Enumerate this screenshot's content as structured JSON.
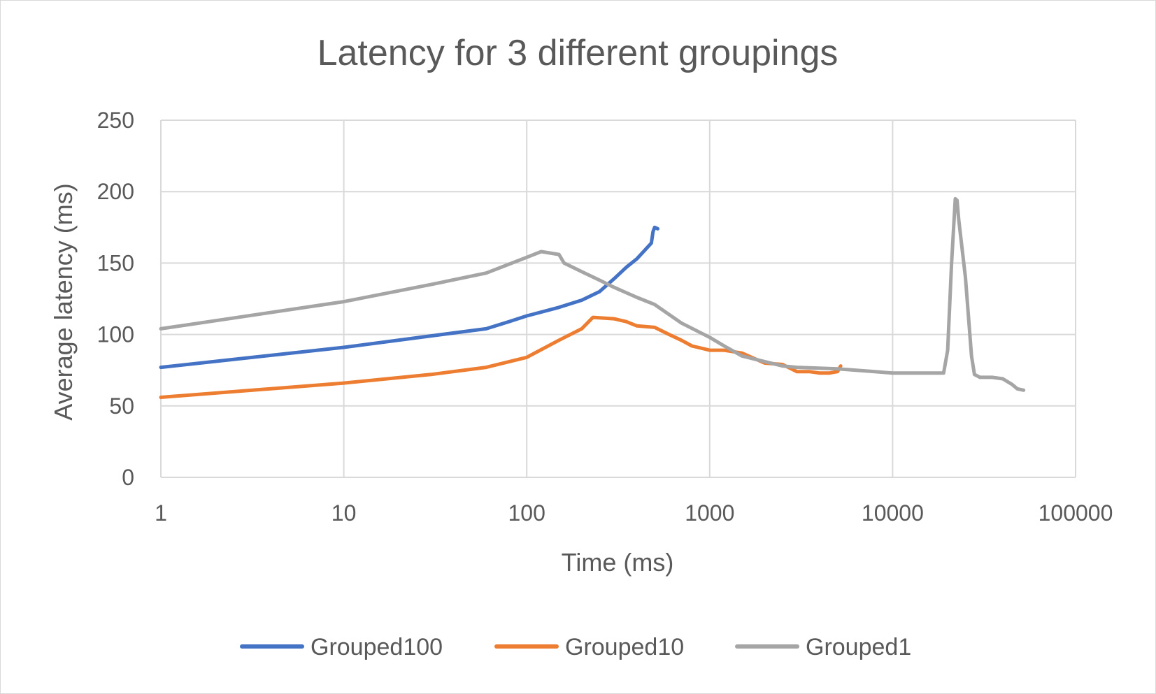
{
  "chart_data": {
    "type": "line",
    "title": "Latency for 3 different groupings",
    "xlabel": "Time (ms)",
    "ylabel": "Average latency (ms)",
    "x_scale": "log",
    "xlim": [
      1,
      100000
    ],
    "ylim": [
      0,
      250
    ],
    "x_ticks": [
      "1",
      "10",
      "100",
      "1000",
      "10000",
      "100000"
    ],
    "x_tick_values": [
      1,
      10,
      100,
      1000,
      10000,
      100000
    ],
    "y_ticks": [
      "0",
      "50",
      "100",
      "150",
      "200",
      "250"
    ],
    "y_tick_values": [
      0,
      50,
      100,
      150,
      200,
      250
    ],
    "grid": true,
    "legend_position": "bottom",
    "series": [
      {
        "name": "Grouped100",
        "color": "#4472c4",
        "x": [
          1,
          10,
          30,
          60,
          80,
          100,
          150,
          200,
          250,
          300,
          350,
          400,
          480,
          490,
          500,
          520
        ],
        "y": [
          77,
          91,
          99,
          104,
          109,
          113,
          119,
          124,
          130,
          139,
          147,
          153,
          164,
          172,
          175,
          174
        ]
      },
      {
        "name": "Grouped10",
        "color": "#ed7d31",
        "x": [
          1,
          10,
          30,
          60,
          100,
          150,
          200,
          230,
          300,
          350,
          400,
          500,
          600,
          700,
          800,
          1000,
          1200,
          1500,
          2000,
          2500,
          3000,
          3500,
          4000,
          4500,
          5000,
          5200
        ],
        "y": [
          56,
          66,
          72,
          77,
          84,
          96,
          104,
          112,
          111,
          109,
          106,
          105,
          100,
          96,
          92,
          89,
          89,
          87,
          80,
          79,
          74,
          74,
          73,
          73,
          74,
          78
        ]
      },
      {
        "name": "Grouped1",
        "color": "#a5a5a5",
        "x": [
          1,
          10,
          30,
          60,
          100,
          120,
          150,
          160,
          200,
          250,
          300,
          400,
          500,
          700,
          1000,
          1200,
          1500,
          2000,
          2500,
          3000,
          5000,
          8000,
          10000,
          15000,
          19000,
          20000,
          21000,
          22000,
          22500,
          23000,
          25000,
          27000,
          28000,
          30000,
          35000,
          40000,
          45000,
          48000,
          52000
        ],
        "y": [
          104,
          123,
          135,
          143,
          154,
          158,
          156,
          150,
          144,
          138,
          133,
          126,
          121,
          108,
          98,
          92,
          85,
          81,
          78,
          77,
          76,
          74,
          73,
          73,
          73,
          89,
          150,
          195,
          194,
          180,
          140,
          85,
          72,
          70,
          70,
          69,
          65,
          62,
          61
        ]
      }
    ]
  }
}
